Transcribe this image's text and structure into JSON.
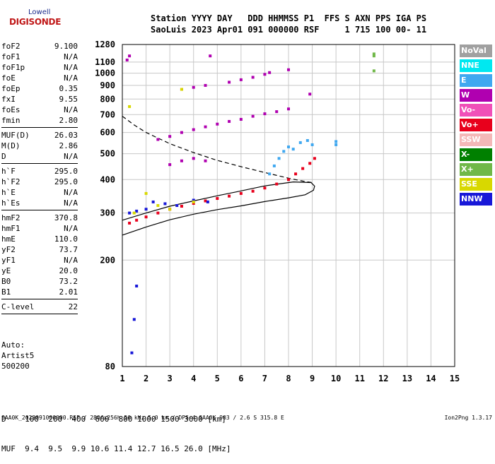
{
  "logo": {
    "top": "Lowell",
    "main": "DIGISONDE"
  },
  "header": {
    "line1": "Station YYYY DAY   DDD HHMMSS P1  FFS S AXN PPS IGA PS",
    "line2": "SaoLuis 2023 Apr01 091 000000 RSF     1 715 100 00- 11"
  },
  "params": [
    {
      "name": "foF2",
      "value": "9.100"
    },
    {
      "name": "foF1",
      "value": "N/A"
    },
    {
      "name": "foF1p",
      "value": "N/A"
    },
    {
      "name": "foE",
      "value": "N/A"
    },
    {
      "name": "foEp",
      "value": "0.35"
    },
    {
      "name": "fxI",
      "value": "9.55"
    },
    {
      "name": "foEs",
      "value": "N/A"
    },
    {
      "name": "fmin",
      "value": "2.80"
    },
    {
      "sep": true
    },
    {
      "name": "MUF(D)",
      "value": "26.03"
    },
    {
      "name": "M(D)",
      "value": "2.86"
    },
    {
      "name": "D",
      "value": "N/A"
    },
    {
      "sep": true
    },
    {
      "name": "h`F",
      "value": "295.0"
    },
    {
      "name": "h`F2",
      "value": "295.0"
    },
    {
      "name": "h`E",
      "value": "N/A"
    },
    {
      "name": "h`Es",
      "value": "N/A"
    },
    {
      "sep": true
    },
    {
      "name": "hmF2",
      "value": "370.8"
    },
    {
      "name": "hmF1",
      "value": "N/A"
    },
    {
      "name": "hmE",
      "value": "110.0"
    },
    {
      "name": "yF2",
      "value": "73.7"
    },
    {
      "name": "yF1",
      "value": "N/A"
    },
    {
      "name": "yE",
      "value": "20.0"
    },
    {
      "name": "B0",
      "value": "73.2"
    },
    {
      "name": "B1",
      "value": "2.01"
    },
    {
      "sep": true
    },
    {
      "name": "C-level",
      "value": "22"
    },
    {
      "sep": true
    }
  ],
  "auto": {
    "line1": "Auto:",
    "line2": "Artist5",
    "line3": "500200"
  },
  "legend": [
    {
      "label": "NoVal",
      "color": "#a0a0a0"
    },
    {
      "label": "NNE",
      "color": "#00e8f0"
    },
    {
      "label": "E",
      "color": "#40a8f0"
    },
    {
      "label": "W",
      "color": "#b000b0"
    },
    {
      "label": "Vo-",
      "color": "#f050b8"
    },
    {
      "label": "Vo+",
      "color": "#e8001c"
    },
    {
      "label": "SSW",
      "color": "#f4b8b8"
    },
    {
      "label": "X-",
      "color": "#008000"
    },
    {
      "label": "X+",
      "color": "#70b848"
    },
    {
      "label": "SSE",
      "color": "#d8d800"
    },
    {
      "label": "NNW",
      "color": "#1818d8"
    }
  ],
  "bottom": {
    "line1": "D    100  200  400  600  800 1000 1500 3000 [km]",
    "line2": "MUF  9.4  9.5  9.9 10.6 11.4 12.7 16.5 26.0 [MHz]"
  },
  "footer": "SAA0K_2023091000000.RSF / 280fx256h 50 kHz 5.0 km / DPS-4 SAA0K 903 / 2.6 S 315.8 E",
  "version": "Ion2Png 1.3.17",
  "chart_data": {
    "type": "scatter",
    "xlim": [
      1,
      15
    ],
    "ylim": [
      80,
      1280
    ],
    "x_ticks": [
      1,
      2,
      3,
      4,
      5,
      6,
      7,
      8,
      9,
      10,
      11,
      12,
      13,
      14,
      15
    ],
    "y_ticks": [
      80,
      200,
      300,
      400,
      500,
      600,
      700,
      800,
      900,
      1000,
      1100,
      1280
    ],
    "grid": true,
    "y_scale": "log",
    "series": [
      {
        "color": "#000000",
        "style": "dashed",
        "points": [
          [
            1.0,
            690
          ],
          [
            1.5,
            640
          ],
          [
            2.0,
            600
          ],
          [
            3.0,
            545
          ],
          [
            4.0,
            505
          ],
          [
            5.0,
            472
          ],
          [
            6.0,
            447
          ],
          [
            7.0,
            425
          ],
          [
            8.0,
            405
          ],
          [
            8.6,
            395
          ],
          [
            9.0,
            390
          ]
        ]
      },
      {
        "color": "#000000",
        "style": "solid",
        "points": [
          [
            1.0,
            248
          ],
          [
            2.0,
            266
          ],
          [
            3.0,
            283
          ],
          [
            4.0,
            297
          ],
          [
            5.0,
            309
          ],
          [
            6.0,
            319
          ],
          [
            7.0,
            331
          ],
          [
            8.0,
            342
          ],
          [
            8.7,
            351
          ],
          [
            9.05,
            365
          ],
          [
            9.1,
            378
          ],
          [
            8.95,
            390
          ],
          [
            8.2,
            392
          ],
          [
            7.0,
            379
          ],
          [
            6.0,
            363
          ],
          [
            5.0,
            348
          ],
          [
            4.0,
            333
          ],
          [
            3.0,
            318
          ],
          [
            2.0,
            300
          ],
          [
            1.0,
            282
          ]
        ]
      },
      {
        "color": "#e8001c",
        "style": "dots",
        "points": [
          [
            1.3,
            275
          ],
          [
            1.6,
            282
          ],
          [
            2.0,
            290
          ],
          [
            2.5,
            300
          ],
          [
            3.0,
            310
          ],
          [
            3.5,
            318
          ],
          [
            4.0,
            326
          ],
          [
            4.5,
            333
          ],
          [
            5.0,
            340
          ],
          [
            5.5,
            347
          ],
          [
            6.0,
            355
          ],
          [
            6.5,
            362
          ],
          [
            7.0,
            372
          ],
          [
            7.5,
            385
          ],
          [
            8.0,
            400
          ],
          [
            8.3,
            420
          ],
          [
            8.6,
            440
          ],
          [
            8.9,
            460
          ],
          [
            9.1,
            480
          ]
        ]
      },
      {
        "color": "#40a8f0",
        "style": "dots",
        "points": [
          [
            7.2,
            420
          ],
          [
            7.4,
            450
          ],
          [
            7.6,
            480
          ],
          [
            7.8,
            510
          ],
          [
            8.0,
            530
          ],
          [
            8.2,
            520
          ],
          [
            8.5,
            550
          ],
          [
            8.8,
            560
          ],
          [
            9.0,
            540
          ],
          [
            10.0,
            540
          ],
          [
            10.0,
            555
          ]
        ]
      },
      {
        "color": "#b000b0",
        "style": "dots",
        "points": [
          [
            2.5,
            565
          ],
          [
            3.0,
            580
          ],
          [
            3.5,
            600
          ],
          [
            4.0,
            615
          ],
          [
            4.5,
            630
          ],
          [
            5.0,
            645
          ],
          [
            5.5,
            660
          ],
          [
            6.0,
            672
          ],
          [
            6.5,
            690
          ],
          [
            7.0,
            705
          ],
          [
            7.5,
            718
          ],
          [
            8.0,
            735
          ],
          [
            3.0,
            455
          ],
          [
            3.5,
            470
          ],
          [
            4.0,
            480
          ],
          [
            4.5,
            470
          ],
          [
            3.5,
            870
          ],
          [
            4.0,
            885
          ],
          [
            4.5,
            900
          ],
          [
            5.5,
            925
          ],
          [
            6.0,
            945
          ],
          [
            6.5,
            965
          ],
          [
            7.0,
            990
          ],
          [
            7.2,
            1005
          ],
          [
            8.0,
            1030
          ],
          [
            1.2,
            1120
          ],
          [
            1.3,
            1160
          ],
          [
            4.7,
            1160
          ],
          [
            8.9,
            835
          ]
        ]
      },
      {
        "color": "#1818d8",
        "style": "dots",
        "points": [
          [
            1.3,
            300
          ],
          [
            1.6,
            305
          ],
          [
            2.0,
            310
          ],
          [
            2.3,
            330
          ],
          [
            2.8,
            325
          ],
          [
            3.3,
            320
          ],
          [
            4.0,
            335
          ],
          [
            4.6,
            330
          ],
          [
            1.4,
            90
          ],
          [
            1.5,
            120
          ],
          [
            1.6,
            160
          ]
        ]
      },
      {
        "color": "#d8d800",
        "style": "dots",
        "points": [
          [
            1.5,
            300
          ],
          [
            2.0,
            355
          ],
          [
            2.5,
            320
          ],
          [
            3.0,
            310
          ],
          [
            4.0,
            330
          ],
          [
            3.5,
            870
          ],
          [
            1.3,
            750
          ]
        ]
      },
      {
        "color": "#70b848",
        "style": "dots",
        "points": [
          [
            11.6,
            1180
          ],
          [
            11.6,
            1160
          ],
          [
            11.6,
            1020
          ]
        ]
      }
    ]
  }
}
